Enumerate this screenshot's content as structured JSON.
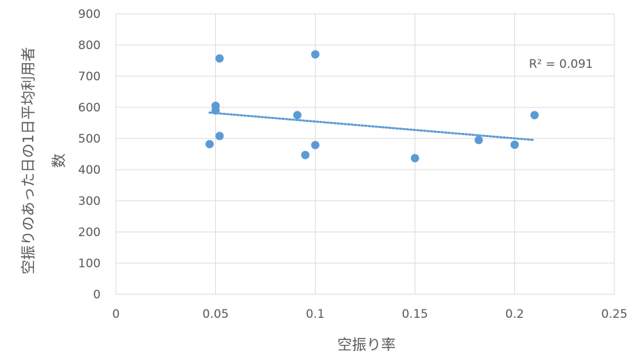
{
  "chart_data": {
    "type": "scatter",
    "title": "",
    "xlabel": "空振り率",
    "ylabel_line1": "空振りのあった日の1日平均利用者",
    "ylabel_line2": "数",
    "xlim": [
      0,
      0.25
    ],
    "ylim": [
      0,
      900
    ],
    "x_ticks": [
      "0",
      "0.05",
      "0.1",
      "0.15",
      "0.2",
      "0.25"
    ],
    "y_ticks": [
      "0",
      "100",
      "200",
      "300",
      "400",
      "500",
      "600",
      "700",
      "800",
      "900"
    ],
    "grid": true,
    "series": [
      {
        "points": [
          {
            "x": 0.047,
            "y": 482
          },
          {
            "x": 0.05,
            "y": 605
          },
          {
            "x": 0.05,
            "y": 590
          },
          {
            "x": 0.052,
            "y": 508
          },
          {
            "x": 0.052,
            "y": 757
          },
          {
            "x": 0.091,
            "y": 575
          },
          {
            "x": 0.095,
            "y": 447
          },
          {
            "x": 0.1,
            "y": 770
          },
          {
            "x": 0.1,
            "y": 479
          },
          {
            "x": 0.15,
            "y": 437
          },
          {
            "x": 0.182,
            "y": 495
          },
          {
            "x": 0.2,
            "y": 480
          },
          {
            "x": 0.21,
            "y": 575
          }
        ],
        "color": "#5b9bd5"
      }
    ],
    "trendline": {
      "type": "linear",
      "x_start": 0.047,
      "y_start": 583,
      "x_end": 0.21,
      "y_end": 495,
      "color": "#5b9bd5",
      "style": "dotted"
    },
    "annotation": {
      "text": "R² = 0.091"
    }
  }
}
